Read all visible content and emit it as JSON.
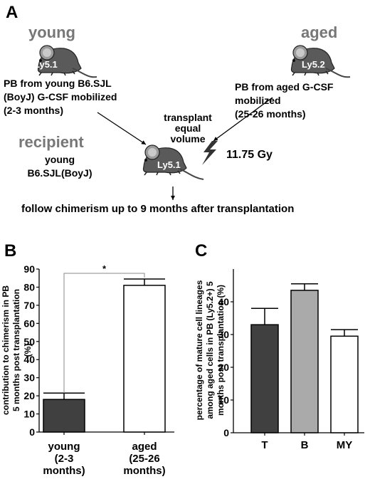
{
  "panels": {
    "A": {
      "label": "A",
      "young": {
        "title": "young",
        "mouse_label": "Ly5.1",
        "desc": [
          "PB from young B6.SJL",
          "(BoyJ) G-CSF mobilized",
          "(2-3 months)"
        ]
      },
      "aged": {
        "title": "aged",
        "mouse_label": "Ly5.2",
        "desc": [
          "PB from aged G-CSF",
          "mobilized",
          "(25-26 months)"
        ]
      },
      "transplant": [
        "transplant",
        "equal",
        "volume"
      ],
      "recipient": {
        "title": "recipient",
        "desc": [
          "young",
          "B6.SJL(BoyJ)"
        ],
        "mouse_label": "Ly5.1"
      },
      "dose": "11.75 Gy",
      "follow": "follow chimerism up to 9 months  after  transplantation"
    },
    "B": {
      "label": "B"
    },
    "C": {
      "label": "C"
    }
  },
  "chart_data": [
    {
      "type": "bar",
      "panel": "B",
      "ylabel_lines": [
        "contribution to chimerism in PB",
        "5 months post transplantation",
        "(%)"
      ],
      "ylim": [
        0,
        90
      ],
      "yticks": [
        0,
        10,
        20,
        30,
        40,
        50,
        60,
        70,
        80,
        90
      ],
      "categories": [
        {
          "lines": [
            "young",
            "(2-3",
            "months)"
          ]
        },
        {
          "lines": [
            "aged",
            "(25-26",
            "months)"
          ]
        }
      ],
      "values": [
        18,
        81
      ],
      "errors": [
        3.5,
        3.5
      ],
      "colors": [
        "#404040",
        "#ffffff"
      ],
      "significance": "*"
    },
    {
      "type": "bar",
      "panel": "C",
      "ylabel_lines": [
        "percentage of mature cell lineages",
        "among aged cells in PB (Ly5.2+) 5",
        "months post transplantation (%)"
      ],
      "ylim": [
        0,
        50
      ],
      "yticks": [
        0,
        10,
        20,
        30,
        40
      ],
      "categories": [
        {
          "lines": [
            "T"
          ]
        },
        {
          "lines": [
            "B"
          ]
        },
        {
          "lines": [
            "MY"
          ]
        }
      ],
      "values": [
        33,
        43.5,
        29.5
      ],
      "errors": [
        5,
        2,
        2
      ],
      "colors": [
        "#404040",
        "#aaaaaa",
        "#ffffff"
      ]
    }
  ]
}
